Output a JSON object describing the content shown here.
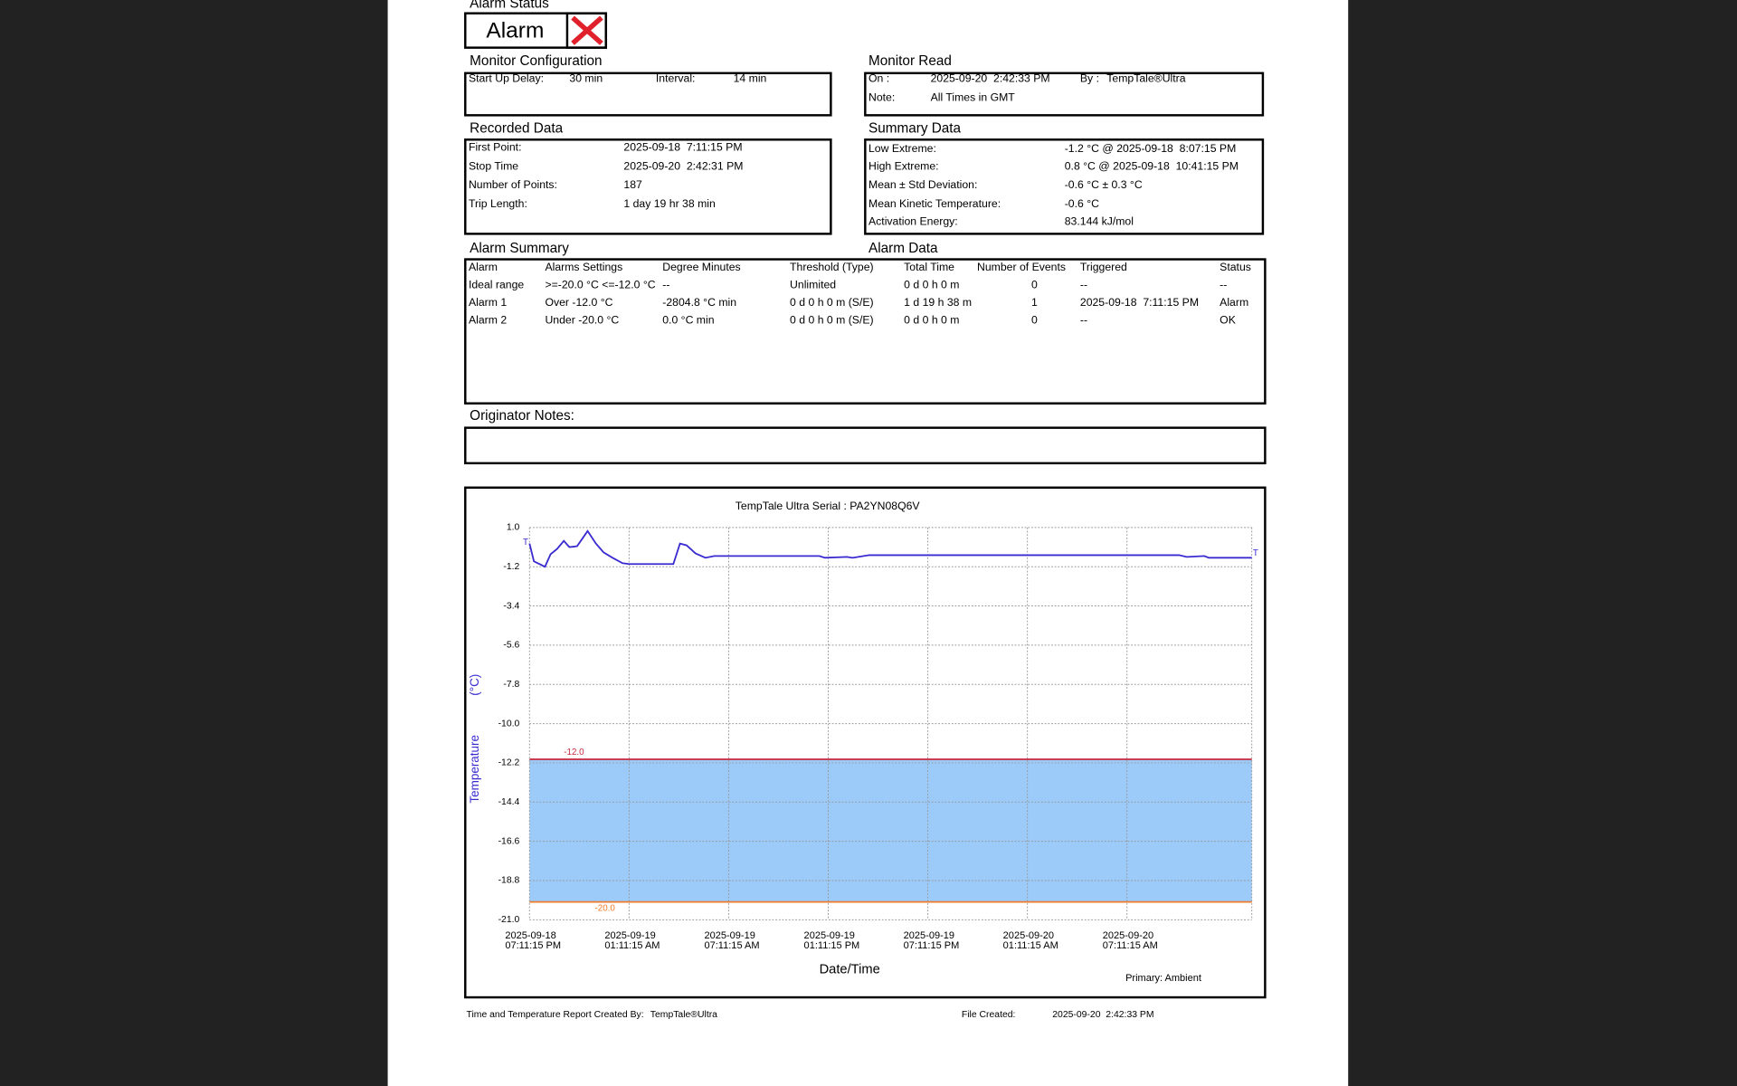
{
  "alarm_status": {
    "title": "Alarm Status",
    "value": "Alarm"
  },
  "monitor_configuration": {
    "title": "Monitor Configuration",
    "rows": [
      [
        "Start Up Delay:",
        "30 min",
        "Interval:",
        "14 min"
      ]
    ]
  },
  "monitor_read": {
    "title": "Monitor Read",
    "rows": [
      [
        "On :",
        "2025-09-20  2:42:33 PM",
        "By :",
        "TempTale®Ultra"
      ],
      [
        "Note:",
        "All Times in GMT"
      ]
    ]
  },
  "recorded_data": {
    "title": "Recorded Data",
    "rows": [
      [
        "First Point:",
        "2025-09-18  7:11:15 PM"
      ],
      [
        "Stop Time",
        "2025-09-20  2:42:31 PM"
      ],
      [
        "Number of Points:",
        "187"
      ],
      [
        "Trip Length:",
        "1 day 19 hr 38 min"
      ]
    ]
  },
  "summary_data": {
    "title": "Summary Data",
    "rows": [
      [
        "Low Extreme:",
        "-1.2 °C @ 2025-09-18  8:07:15 PM"
      ],
      [
        "High Extreme:",
        "0.8 °C @ 2025-09-18  10:41:15 PM"
      ],
      [
        "Mean ± Std Deviation:",
        "-0.6 °C ± 0.3 °C"
      ],
      [
        "Mean Kinetic Temperature:",
        "-0.6 °C"
      ],
      [
        "Activation Energy:",
        "83.144 kJ/mol"
      ]
    ]
  },
  "alarm_summary": {
    "title": "Alarm Summary",
    "subtitle": "Alarm Data",
    "header": [
      "Alarm",
      "Alarms Settings",
      "Degree Minutes",
      "Threshold (Type)",
      "Total Time",
      "Number of Events",
      "Triggered",
      "Status"
    ],
    "rows": [
      [
        "Ideal range",
        ">=-20.0 °C <=-12.0 °C",
        "--",
        "Unlimited",
        "0 d 0 h 0 m",
        "0",
        "--",
        "--"
      ],
      [
        "Alarm 1",
        "Over -12.0 °C",
        "-2804.8 °C min",
        "0 d 0 h 0 m (S/E)",
        "1 d 19 h 38 m",
        "1",
        "2025-09-18  7:11:15 PM",
        "Alarm"
      ],
      [
        "Alarm 2",
        "Under -20.0 °C",
        "0.0 °C min",
        "0 d 0 h 0 m (S/E)",
        "0 d 0 h 0 m",
        "0",
        "--",
        "OK"
      ]
    ]
  },
  "originator_notes": {
    "title": "Originator Notes:"
  },
  "chart_data": {
    "type": "line",
    "title": "TempTale Ultra  Serial : PA2YN08Q6V",
    "ylabel": "Temperature",
    "yunit": "(°C)",
    "xlabel": "Date/Time",
    "note": "Primary: Ambient",
    "start_marker": "T",
    "end_marker": "T",
    "color": "#3a2bd0",
    "x": [
      "2025-09-18T19:11:15",
      "2025-09-18T19:27:15",
      "2025-09-18T20:07:15",
      "2025-09-18T20:27:15",
      "2025-09-18T20:51:15",
      "2025-09-18T21:15:15",
      "2025-09-18T21:35:15",
      "2025-09-18T22:03:15",
      "2025-09-18T22:41:15",
      "2025-09-18T23:11:15",
      "2025-09-18T23:39:15",
      "2025-09-19T00:11:15",
      "2025-09-19T00:47:15",
      "2025-09-19T01:11:15",
      "2025-09-19T03:51:15",
      "2025-09-19T04:15:15",
      "2025-09-19T04:39:15",
      "2025-09-19T05:11:15",
      "2025-09-19T05:47:15",
      "2025-09-19T06:19:15",
      "2025-09-19T12:39:15",
      "2025-09-19T12:59:15",
      "2025-09-19T14:19:15",
      "2025-09-19T14:39:15",
      "2025-09-19T15:39:15",
      "2025-09-20T10:19:15",
      "2025-09-20T10:47:15",
      "2025-09-20T11:51:15",
      "2025-09-20T12:07:15",
      "2025-09-20T14:42:31"
    ],
    "values": [
      0.1,
      -0.9,
      -1.2,
      -0.5,
      -0.2,
      0.25,
      -0.1,
      -0.05,
      0.8,
      0.1,
      -0.4,
      -0.7,
      -1.0,
      -1.05,
      -1.05,
      0.1,
      0.0,
      -0.45,
      -0.7,
      -0.6,
      -0.6,
      -0.7,
      -0.65,
      -0.7,
      -0.55,
      -0.55,
      -0.65,
      -0.6,
      -0.7,
      -0.7
    ],
    "xlim": [
      "2025-09-18T19:11:15",
      "2025-09-20T14:42:31"
    ],
    "xticks": [
      {
        "value": "2025-09-18T19:11:15",
        "label": "2025-09-18\n07:11:15 PM"
      },
      {
        "value": "2025-09-19T01:11:15",
        "label": "2025-09-19\n01:11:15 AM"
      },
      {
        "value": "2025-09-19T07:11:15",
        "label": "2025-09-19\n07:11:15 AM"
      },
      {
        "value": "2025-09-19T13:11:15",
        "label": "2025-09-19\n01:11:15 PM"
      },
      {
        "value": "2025-09-19T19:11:15",
        "label": "2025-09-19\n07:11:15 PM"
      },
      {
        "value": "2025-09-20T01:11:15",
        "label": "2025-09-20\n01:11:15 AM"
      },
      {
        "value": "2025-09-20T07:11:15",
        "label": "2025-09-20\n07:11:15 AM"
      }
    ],
    "ylim": [
      -21.0,
      1.0
    ],
    "yticks": [
      {
        "value": 1.0,
        "label": "1.0"
      },
      -1.2,
      -3.4,
      -5.6,
      -7.8,
      {
        "value": -10.0,
        "label": "-10.0"
      },
      -12.2,
      -14.4,
      -16.6,
      -18.8,
      {
        "value": -21.0,
        "label": "-21.0"
      }
    ],
    "grid": true,
    "thresholds": [
      {
        "value": -12.0,
        "label": "-12.0",
        "color": "#c8283c"
      },
      {
        "value": -20.0,
        "label": "-20.0",
        "color": "#ee7a2a"
      }
    ],
    "band_color": "#9ccbfa"
  },
  "footer": {
    "created_by_label": "Time and Temperature Report Created By:",
    "created_by": "TempTale®Ultra",
    "file_created_label": "File Created:",
    "file_created": "2025-09-20  2:42:33 PM"
  }
}
